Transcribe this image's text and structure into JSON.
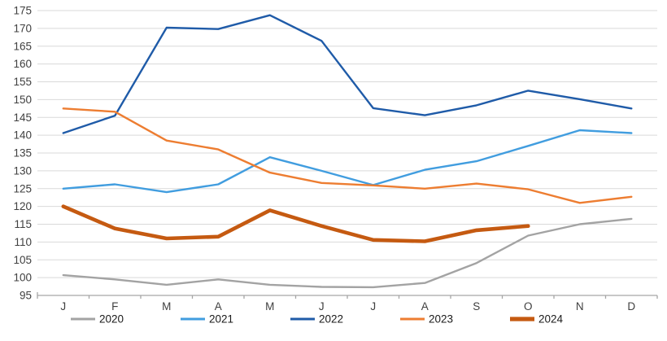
{
  "chart_data": {
    "type": "line",
    "title": "",
    "xlabel": "",
    "ylabel": "",
    "categories": [
      "J",
      "F",
      "M",
      "A",
      "M",
      "J",
      "J",
      "A",
      "S",
      "O",
      "N",
      "D"
    ],
    "series": [
      {
        "name": "2020",
        "color": "#A3A3A3",
        "stroke_width": 2.4,
        "values": [
          100.7,
          99.5,
          98.0,
          99.5,
          98.0,
          97.4,
          97.3,
          98.5,
          104.1,
          111.8,
          115.0,
          116.5
        ]
      },
      {
        "name": "2021",
        "color": "#419DDF",
        "stroke_width": 2.4,
        "values": [
          125.0,
          126.2,
          124.0,
          126.2,
          133.8,
          130.0,
          126.0,
          130.3,
          132.7,
          137.0,
          141.4,
          140.6
        ]
      },
      {
        "name": "2022",
        "color": "#1F5BA8",
        "stroke_width": 2.4,
        "values": [
          140.6,
          145.5,
          170.2,
          169.8,
          173.7,
          166.5,
          147.6,
          145.6,
          148.4,
          152.5,
          150.1,
          147.5
        ]
      },
      {
        "name": "2023",
        "color": "#ED7D31",
        "stroke_width": 2.4,
        "values": [
          147.5,
          146.6,
          138.5,
          136.0,
          129.5,
          126.6,
          125.9,
          125.0,
          126.4,
          124.8,
          121.0,
          122.7
        ]
      },
      {
        "name": "2024",
        "color": "#C55A11",
        "stroke_width": 4.6,
        "values": [
          120.0,
          113.8,
          111.0,
          111.5,
          118.9,
          114.5,
          110.6,
          110.2,
          113.3,
          114.5,
          null,
          null
        ]
      }
    ],
    "ylim": [
      95,
      175
    ],
    "ytick_step": 5,
    "y_tick_labels": [
      "95",
      "100",
      "105",
      "110",
      "115",
      "120",
      "125",
      "130",
      "135",
      "140",
      "145",
      "150",
      "155",
      "160",
      "165",
      "170",
      "175"
    ],
    "grid": "horizontal-on",
    "legend_position": "bottom",
    "legend_entries": [
      "2020",
      "2021",
      "2022",
      "2023",
      "2024"
    ]
  },
  "style": {
    "gridline_color": "#D9D9D9",
    "axis_line_color": "#A6A6A6",
    "tick_label_color": "#404040",
    "background_color": "#FFFFFF"
  }
}
